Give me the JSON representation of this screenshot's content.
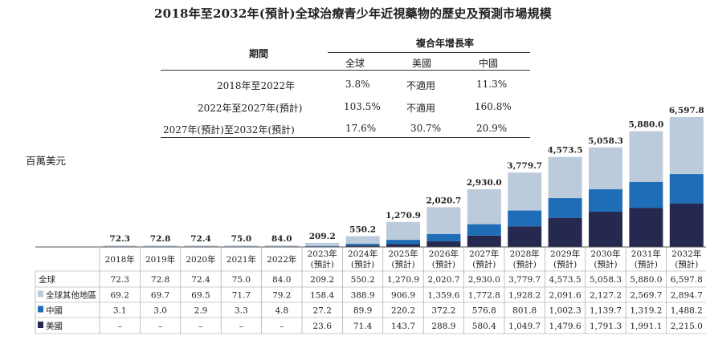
{
  "title": "2018年至2032年(預計)全球治療青少年近視藥物的歷史及預測市場規模",
  "cagr_table": {
    "period_header": "期間",
    "cagr_header": "複合年增長率",
    "columns": [
      "全球",
      "美國",
      "中國"
    ],
    "rows": [
      {
        "period": "2018年至2022年",
        "values": [
          "3.8%",
          "不適用",
          "11.3%"
        ]
      },
      {
        "period": "2022年至2027年(預計)",
        "values": [
          "103.5%",
          "不適用",
          "160.8%"
        ]
      },
      {
        "period": "2027年(預計)至2032年(預計)",
        "values": [
          "17.6%",
          "30.7%",
          "20.9%"
        ]
      }
    ]
  },
  "unit_label": "百萬美元",
  "colors": {
    "rest": "#bccbdb",
    "china": "#1f6db7",
    "us": "#25284f"
  },
  "chart_data": {
    "type": "bar",
    "stacked": true,
    "categories": [
      "2018年",
      "2019年",
      "2020年",
      "2021年",
      "2022年",
      "2023年(預計)",
      "2024年(預計)",
      "2025年(預計)",
      "2026年(預計)",
      "2027年(預計)",
      "2028年(預計)",
      "2029年(預計)",
      "2030年(預計)",
      "2031年(預計)",
      "2032年(預計)"
    ],
    "category_lines": [
      [
        "2018年"
      ],
      [
        "2019年"
      ],
      [
        "2020年"
      ],
      [
        "2021年"
      ],
      [
        "2022年"
      ],
      [
        "2023年",
        "(預計)"
      ],
      [
        "2024年",
        "(預計)"
      ],
      [
        "2025年",
        "(預計)"
      ],
      [
        "2026年",
        "(預計)"
      ],
      [
        "2027年",
        "(預計)"
      ],
      [
        "2028年",
        "(預計)"
      ],
      [
        "2029年",
        "(預計)"
      ],
      [
        "2030年",
        "(預計)"
      ],
      [
        "2031年",
        "(預計)"
      ],
      [
        "2032年",
        "(預計)"
      ]
    ],
    "totals_label": "全球",
    "totals": [
      "72.3",
      "72.8",
      "72.4",
      "75.0",
      "84.0",
      "209.2",
      "550.2",
      "1,270.9",
      "2,020.7",
      "2,930.0",
      "3,779.7",
      "4,573.5",
      "5,058.3",
      "5,880.0",
      "6,597.8"
    ],
    "total_values": [
      72.3,
      72.8,
      72.4,
      75.0,
      84.0,
      209.2,
      550.2,
      1270.9,
      2020.7,
      2930.0,
      3779.7,
      4573.5,
      5058.3,
      5880.0,
      6597.8
    ],
    "series": [
      {
        "name": "全球其他地區",
        "color_key": "rest",
        "labels": [
          "69.2",
          "69.7",
          "69.5",
          "71.7",
          "79.2",
          "158.4",
          "388.9",
          "906.9",
          "1,359.6",
          "1,772.8",
          "1,928.2",
          "2,091.6",
          "2,127.2",
          "2,569.7",
          "2,894.7"
        ],
        "values": [
          69.2,
          69.7,
          69.5,
          71.7,
          79.2,
          158.4,
          388.9,
          906.9,
          1359.6,
          1772.8,
          1928.2,
          2091.6,
          2127.2,
          2569.7,
          2894.7
        ]
      },
      {
        "name": "中國",
        "color_key": "china",
        "labels": [
          "3.1",
          "3.0",
          "2.9",
          "3.3",
          "4.8",
          "27.2",
          "89.9",
          "220.2",
          "372.2",
          "576.8",
          "801.8",
          "1,002.3",
          "1,139.7",
          "1,319.2",
          "1,488.2"
        ],
        "values": [
          3.1,
          3.0,
          2.9,
          3.3,
          4.8,
          27.2,
          89.9,
          220.2,
          372.2,
          576.8,
          801.8,
          1002.3,
          1139.7,
          1319.2,
          1488.2
        ]
      },
      {
        "name": "美國",
        "color_key": "us",
        "labels": [
          "–",
          "–",
          "–",
          "–",
          "–",
          "23.6",
          "71.4",
          "143.7",
          "288.9",
          "580.4",
          "1,049.7",
          "1,479.6",
          "1,791.3",
          "1,991.1",
          "2,215.0"
        ],
        "values": [
          0,
          0,
          0,
          0,
          0,
          23.6,
          71.4,
          143.7,
          288.9,
          580.4,
          1049.7,
          1479.6,
          1791.3,
          1991.1,
          2215.0
        ]
      }
    ],
    "ylim": [
      0,
      6597.8
    ]
  }
}
